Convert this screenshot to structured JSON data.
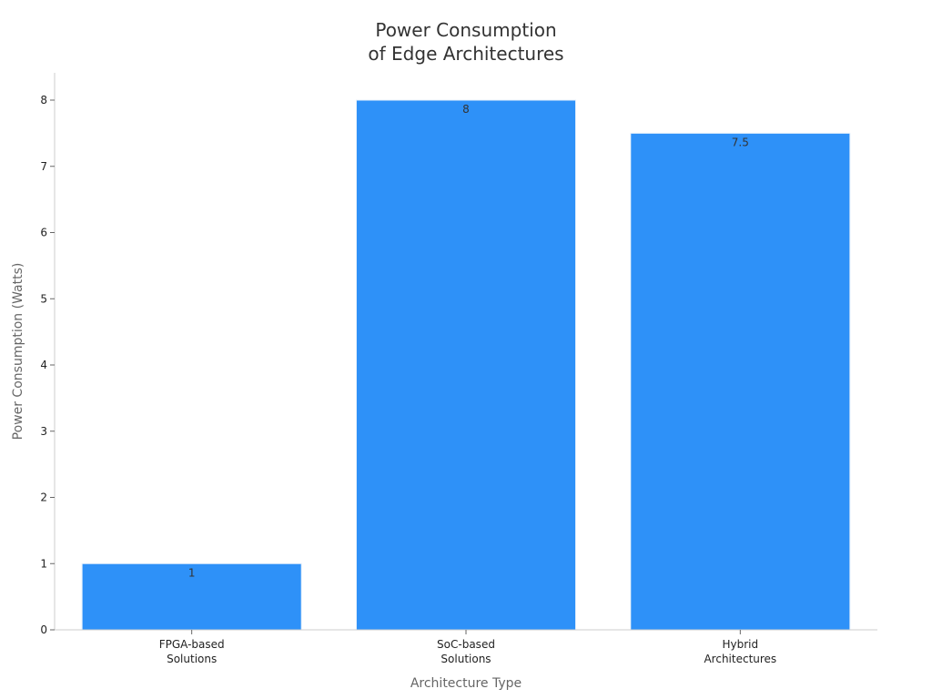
{
  "chart_data": {
    "type": "bar",
    "title_lines": [
      "Power Consumption",
      "of Edge Architectures"
    ],
    "xlabel": "Architecture Type",
    "ylabel": "Power Consumption (Watts)",
    "categories": [
      [
        "FPGA-based",
        "Solutions"
      ],
      [
        "SoC-based",
        "Solutions"
      ],
      [
        "Hybrid",
        "Architectures"
      ]
    ],
    "values": [
      1,
      8,
      7.5
    ],
    "value_labels": [
      "1",
      "8",
      "7.5"
    ],
    "ylim": [
      0,
      8.4
    ],
    "yticks": [
      0,
      1,
      2,
      3,
      4,
      5,
      6,
      7,
      8
    ],
    "bar_color": "#2e91f8",
    "grid": false,
    "legend": "none"
  }
}
